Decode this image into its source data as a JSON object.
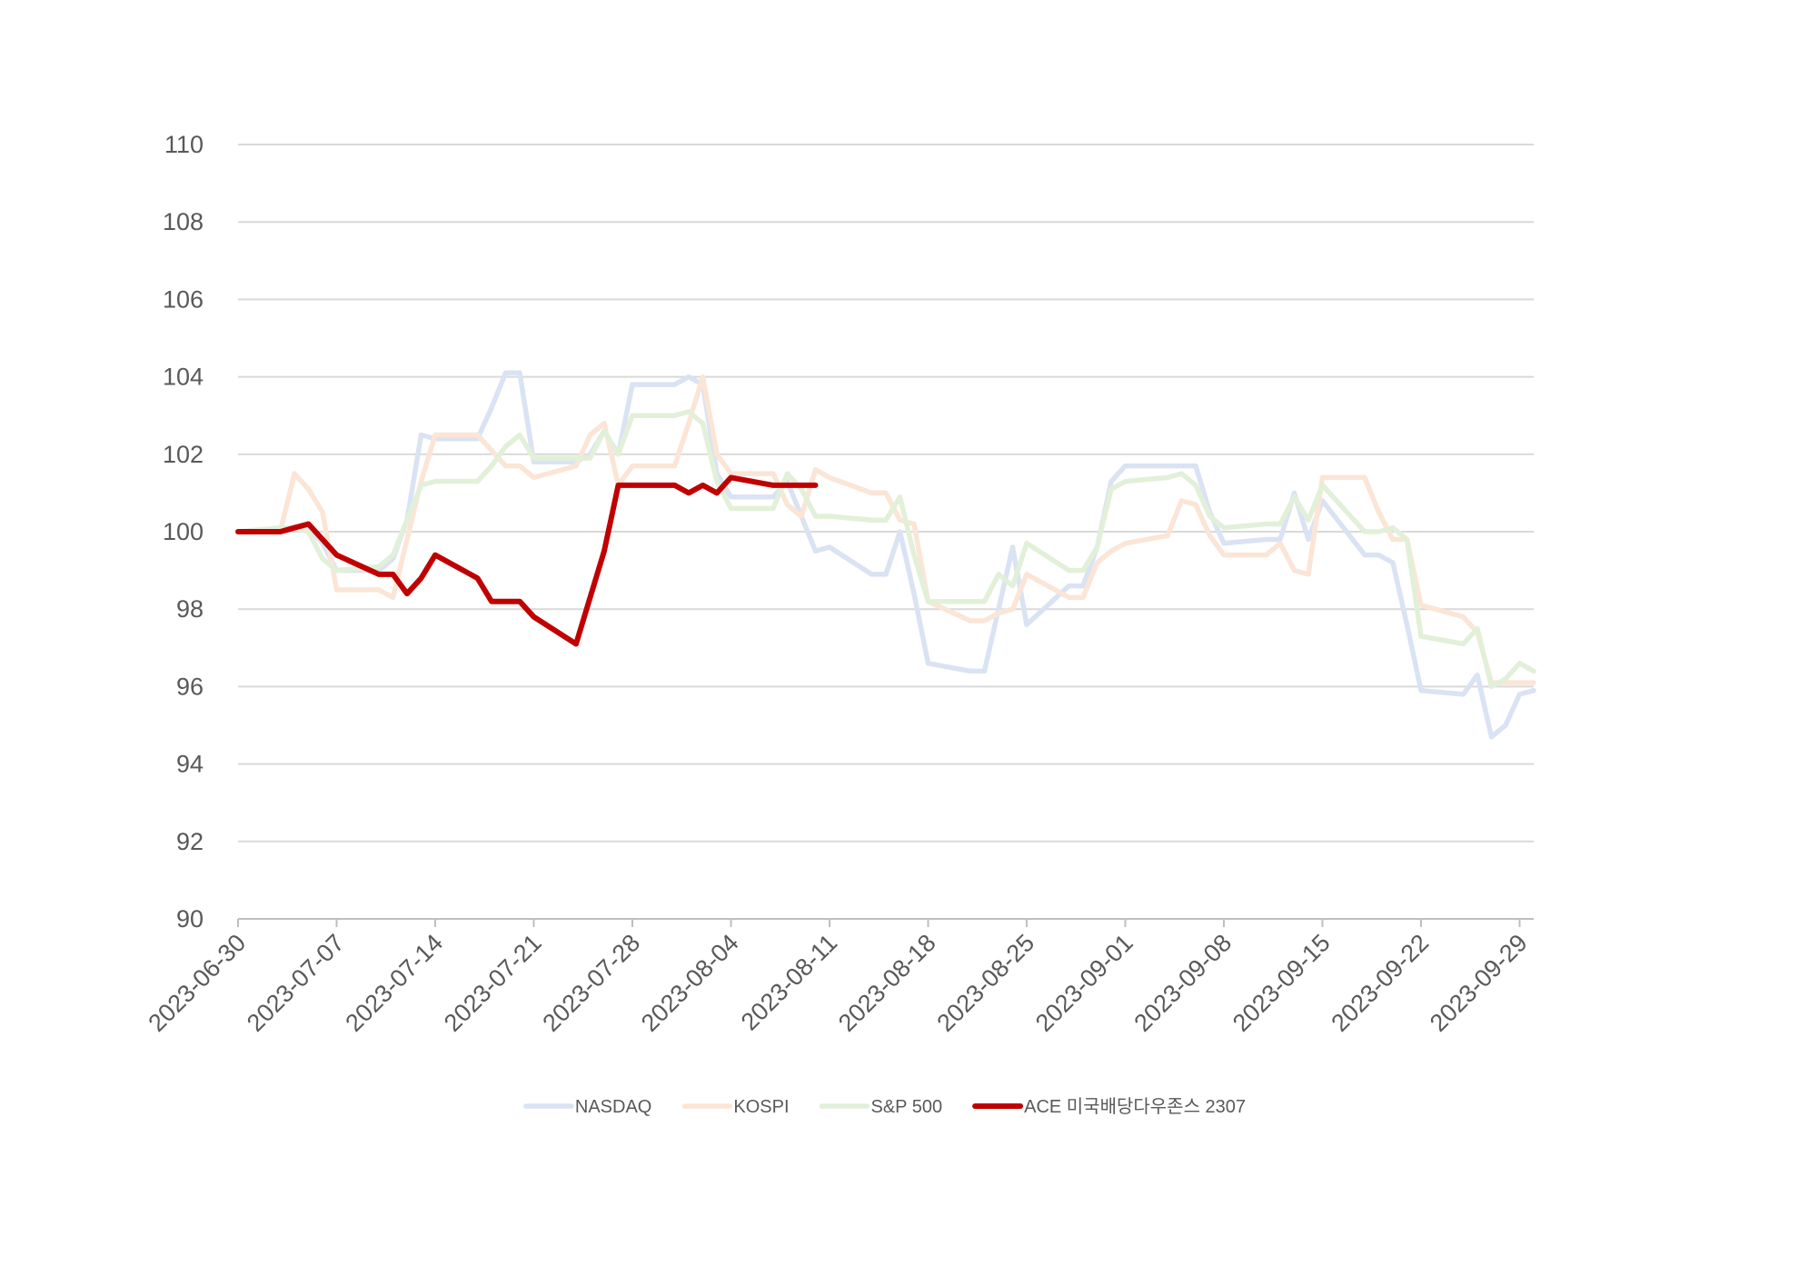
{
  "chart_data": {
    "type": "line",
    "title": "",
    "xlabel": "",
    "ylabel": "",
    "ylim": [
      90,
      110
    ],
    "yticks": [
      "90",
      "92",
      "94",
      "96",
      "98",
      "100",
      "102",
      "104",
      "106",
      "108",
      "110"
    ],
    "xlim": [
      "2023-06-30",
      "2023-09-30"
    ],
    "xticks": [
      "2023-06-30",
      "2023-07-07",
      "2023-07-14",
      "2023-07-21",
      "2023-07-28",
      "2023-08-04",
      "2023-08-11",
      "2023-08-18",
      "2023-08-25",
      "2023-09-01",
      "2023-09-08",
      "2023-09-15",
      "2023-09-22",
      "2023-09-29"
    ],
    "grid": "horizontal",
    "legend_position": "bottom",
    "series": [
      {
        "name": "NASDAQ",
        "color": "#dae3f3",
        "points": [
          [
            "2023-06-30",
            100.0
          ],
          [
            "2023-07-03",
            100.0
          ],
          [
            "2023-07-04",
            100.1
          ],
          [
            "2023-07-05",
            100.1
          ],
          [
            "2023-07-06",
            99.7
          ],
          [
            "2023-07-07",
            99.0
          ],
          [
            "2023-07-10",
            99.0
          ],
          [
            "2023-07-11",
            99.3
          ],
          [
            "2023-07-12",
            100.3
          ],
          [
            "2023-07-13",
            102.5
          ],
          [
            "2023-07-14",
            102.4
          ],
          [
            "2023-07-17",
            102.4
          ],
          [
            "2023-07-18",
            103.2
          ],
          [
            "2023-07-19",
            104.1
          ],
          [
            "2023-07-20",
            104.1
          ],
          [
            "2023-07-21",
            101.8
          ],
          [
            "2023-07-24",
            101.8
          ],
          [
            "2023-07-25",
            102.0
          ],
          [
            "2023-07-26",
            102.6
          ],
          [
            "2023-07-27",
            102.0
          ],
          [
            "2023-07-28",
            103.8
          ],
          [
            "2023-07-31",
            103.8
          ],
          [
            "2023-08-01",
            104.0
          ],
          [
            "2023-08-02",
            103.8
          ],
          [
            "2023-08-03",
            101.5
          ],
          [
            "2023-08-04",
            100.9
          ],
          [
            "2023-08-07",
            100.9
          ],
          [
            "2023-08-08",
            101.3
          ],
          [
            "2023-08-09",
            100.4
          ],
          [
            "2023-08-10",
            99.5
          ],
          [
            "2023-08-11",
            99.6
          ],
          [
            "2023-08-14",
            98.9
          ],
          [
            "2023-08-15",
            98.9
          ],
          [
            "2023-08-16",
            100.0
          ],
          [
            "2023-08-17",
            98.4
          ],
          [
            "2023-08-18",
            96.6
          ],
          [
            "2023-08-21",
            96.4
          ],
          [
            "2023-08-22",
            96.4
          ],
          [
            "2023-08-23",
            98.0
          ],
          [
            "2023-08-24",
            99.6
          ],
          [
            "2023-08-25",
            97.6
          ],
          [
            "2023-08-28",
            98.6
          ],
          [
            "2023-08-29",
            98.6
          ],
          [
            "2023-08-30",
            99.6
          ],
          [
            "2023-08-31",
            101.3
          ],
          [
            "2023-09-01",
            101.7
          ],
          [
            "2023-09-04",
            101.7
          ],
          [
            "2023-09-05",
            101.7
          ],
          [
            "2023-09-06",
            101.7
          ],
          [
            "2023-09-07",
            100.5
          ],
          [
            "2023-09-08",
            99.7
          ],
          [
            "2023-09-11",
            99.8
          ],
          [
            "2023-09-12",
            99.8
          ],
          [
            "2023-09-13",
            101.0
          ],
          [
            "2023-09-14",
            99.8
          ],
          [
            "2023-09-15",
            100.8
          ],
          [
            "2023-09-18",
            99.4
          ],
          [
            "2023-09-19",
            99.4
          ],
          [
            "2023-09-20",
            99.2
          ],
          [
            "2023-09-21",
            97.6
          ],
          [
            "2023-09-22",
            95.9
          ],
          [
            "2023-09-25",
            95.8
          ],
          [
            "2023-09-26",
            96.3
          ],
          [
            "2023-09-27",
            94.7
          ],
          [
            "2023-09-28",
            95.0
          ],
          [
            "2023-09-29",
            95.8
          ],
          [
            "2023-09-30",
            95.9
          ]
        ]
      },
      {
        "name": "KOSPI",
        "color": "#fbe5d6",
        "points": [
          [
            "2023-06-30",
            100.0
          ],
          [
            "2023-07-03",
            100.0
          ],
          [
            "2023-07-04",
            101.5
          ],
          [
            "2023-07-05",
            101.1
          ],
          [
            "2023-07-06",
            100.5
          ],
          [
            "2023-07-07",
            98.5
          ],
          [
            "2023-07-10",
            98.5
          ],
          [
            "2023-07-11",
            98.3
          ],
          [
            "2023-07-12",
            99.8
          ],
          [
            "2023-07-13",
            101.3
          ],
          [
            "2023-07-14",
            102.5
          ],
          [
            "2023-07-17",
            102.5
          ],
          [
            "2023-07-18",
            102.1
          ],
          [
            "2023-07-19",
            101.7
          ],
          [
            "2023-07-20",
            101.7
          ],
          [
            "2023-07-21",
            101.4
          ],
          [
            "2023-07-24",
            101.7
          ],
          [
            "2023-07-25",
            102.5
          ],
          [
            "2023-07-26",
            102.8
          ],
          [
            "2023-07-27",
            101.2
          ],
          [
            "2023-07-28",
            101.7
          ],
          [
            "2023-07-31",
            101.7
          ],
          [
            "2023-08-01",
            102.8
          ],
          [
            "2023-08-02",
            104.0
          ],
          [
            "2023-08-03",
            102.0
          ],
          [
            "2023-08-04",
            101.5
          ],
          [
            "2023-08-07",
            101.5
          ],
          [
            "2023-08-08",
            100.7
          ],
          [
            "2023-08-09",
            100.4
          ],
          [
            "2023-08-10",
            101.6
          ],
          [
            "2023-08-11",
            101.4
          ],
          [
            "2023-08-14",
            101.0
          ],
          [
            "2023-08-15",
            101.0
          ],
          [
            "2023-08-16",
            100.3
          ],
          [
            "2023-08-17",
            100.2
          ],
          [
            "2023-08-18",
            98.2
          ],
          [
            "2023-08-21",
            97.7
          ],
          [
            "2023-08-22",
            97.7
          ],
          [
            "2023-08-23",
            97.9
          ],
          [
            "2023-08-24",
            98.0
          ],
          [
            "2023-08-25",
            98.9
          ],
          [
            "2023-08-28",
            98.3
          ],
          [
            "2023-08-29",
            98.3
          ],
          [
            "2023-08-30",
            99.2
          ],
          [
            "2023-08-31",
            99.5
          ],
          [
            "2023-09-01",
            99.7
          ],
          [
            "2023-09-04",
            99.9
          ],
          [
            "2023-09-05",
            100.8
          ],
          [
            "2023-09-06",
            100.7
          ],
          [
            "2023-09-07",
            99.9
          ],
          [
            "2023-09-08",
            99.4
          ],
          [
            "2023-09-11",
            99.4
          ],
          [
            "2023-09-12",
            99.7
          ],
          [
            "2023-09-13",
            99.0
          ],
          [
            "2023-09-14",
            98.9
          ],
          [
            "2023-09-15",
            101.4
          ],
          [
            "2023-09-18",
            101.4
          ],
          [
            "2023-09-19",
            100.5
          ],
          [
            "2023-09-20",
            99.8
          ],
          [
            "2023-09-21",
            99.8
          ],
          [
            "2023-09-22",
            98.1
          ],
          [
            "2023-09-25",
            97.8
          ],
          [
            "2023-09-26",
            97.4
          ],
          [
            "2023-09-27",
            96.1
          ],
          [
            "2023-09-28",
            96.1
          ],
          [
            "2023-09-29",
            96.1
          ],
          [
            "2023-09-30",
            96.1
          ]
        ]
      },
      {
        "name": "S&P 500",
        "color": "#e2f0d9",
        "points": [
          [
            "2023-06-30",
            100.0
          ],
          [
            "2023-07-03",
            100.1
          ],
          [
            "2023-07-04",
            100.1
          ],
          [
            "2023-07-05",
            100.0
          ],
          [
            "2023-07-06",
            99.3
          ],
          [
            "2023-07-07",
            99.0
          ],
          [
            "2023-07-10",
            99.1
          ],
          [
            "2023-07-11",
            99.4
          ],
          [
            "2023-07-12",
            100.3
          ],
          [
            "2023-07-13",
            101.2
          ],
          [
            "2023-07-14",
            101.3
          ],
          [
            "2023-07-17",
            101.3
          ],
          [
            "2023-07-18",
            101.7
          ],
          [
            "2023-07-19",
            102.2
          ],
          [
            "2023-07-20",
            102.5
          ],
          [
            "2023-07-21",
            101.9
          ],
          [
            "2023-07-24",
            101.9
          ],
          [
            "2023-07-25",
            101.9
          ],
          [
            "2023-07-26",
            102.6
          ],
          [
            "2023-07-27",
            102.0
          ],
          [
            "2023-07-28",
            103.0
          ],
          [
            "2023-07-31",
            103.0
          ],
          [
            "2023-08-01",
            103.1
          ],
          [
            "2023-08-02",
            102.8
          ],
          [
            "2023-08-03",
            101.3
          ],
          [
            "2023-08-04",
            100.6
          ],
          [
            "2023-08-07",
            100.6
          ],
          [
            "2023-08-08",
            101.5
          ],
          [
            "2023-08-09",
            101.1
          ],
          [
            "2023-08-10",
            100.4
          ],
          [
            "2023-08-11",
            100.4
          ],
          [
            "2023-08-14",
            100.3
          ],
          [
            "2023-08-15",
            100.3
          ],
          [
            "2023-08-16",
            100.9
          ],
          [
            "2023-08-17",
            99.4
          ],
          [
            "2023-08-18",
            98.2
          ],
          [
            "2023-08-21",
            98.2
          ],
          [
            "2023-08-22",
            98.2
          ],
          [
            "2023-08-23",
            98.9
          ],
          [
            "2023-08-24",
            98.6
          ],
          [
            "2023-08-25",
            99.7
          ],
          [
            "2023-08-28",
            99.0
          ],
          [
            "2023-08-29",
            99.0
          ],
          [
            "2023-08-30",
            99.6
          ],
          [
            "2023-08-31",
            101.1
          ],
          [
            "2023-09-01",
            101.3
          ],
          [
            "2023-09-04",
            101.4
          ],
          [
            "2023-09-05",
            101.5
          ],
          [
            "2023-09-06",
            101.2
          ],
          [
            "2023-09-07",
            100.4
          ],
          [
            "2023-09-08",
            100.1
          ],
          [
            "2023-09-11",
            100.2
          ],
          [
            "2023-09-12",
            100.2
          ],
          [
            "2023-09-13",
            100.9
          ],
          [
            "2023-09-14",
            100.3
          ],
          [
            "2023-09-15",
            101.2
          ],
          [
            "2023-09-18",
            100.0
          ],
          [
            "2023-09-19",
            100.0
          ],
          [
            "2023-09-20",
            100.1
          ],
          [
            "2023-09-21",
            99.8
          ],
          [
            "2023-09-22",
            97.3
          ],
          [
            "2023-09-25",
            97.1
          ],
          [
            "2023-09-26",
            97.5
          ],
          [
            "2023-09-27",
            96.0
          ],
          [
            "2023-09-28",
            96.2
          ],
          [
            "2023-09-29",
            96.6
          ],
          [
            "2023-09-30",
            96.4
          ]
        ]
      },
      {
        "name": "ACE 미국배당다우존스 2307",
        "color": "#c00000",
        "points": [
          [
            "2023-06-30",
            100.0
          ],
          [
            "2023-07-03",
            100.0
          ],
          [
            "2023-07-04",
            100.1
          ],
          [
            "2023-07-05",
            100.2
          ],
          [
            "2023-07-06",
            99.8
          ],
          [
            "2023-07-07",
            99.4
          ],
          [
            "2023-07-10",
            98.9
          ],
          [
            "2023-07-11",
            98.9
          ],
          [
            "2023-07-12",
            98.4
          ],
          [
            "2023-07-13",
            98.8
          ],
          [
            "2023-07-14",
            99.4
          ],
          [
            "2023-07-17",
            98.8
          ],
          [
            "2023-07-18",
            98.2
          ],
          [
            "2023-07-19",
            98.2
          ],
          [
            "2023-07-20",
            98.2
          ],
          [
            "2023-07-21",
            97.8
          ],
          [
            "2023-07-24",
            97.1
          ],
          [
            "2023-07-25",
            98.3
          ],
          [
            "2023-07-26",
            99.5
          ],
          [
            "2023-07-27",
            101.2
          ],
          [
            "2023-07-28",
            101.2
          ],
          [
            "2023-07-31",
            101.2
          ],
          [
            "2023-08-01",
            101.0
          ],
          [
            "2023-08-02",
            101.2
          ],
          [
            "2023-08-03",
            101.0
          ],
          [
            "2023-08-04",
            101.4
          ],
          [
            "2023-08-07",
            101.2
          ],
          [
            "2023-08-08",
            101.2
          ],
          [
            "2023-08-09",
            101.2
          ],
          [
            "2023-08-10",
            101.2
          ]
        ]
      }
    ]
  }
}
